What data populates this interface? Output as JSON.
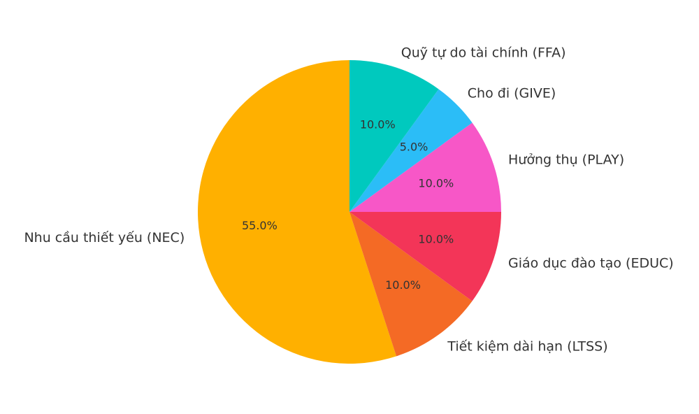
{
  "chart_data": {
    "type": "pie",
    "categories": [
      "Nhu cầu thiết yếu (NEC)",
      "Tiết kiệm dài hạn (LTSS)",
      "Giáo dục đào tạo (EDUC)",
      "Hưởng thụ (PLAY)",
      "Cho đi (GIVE)",
      "Quỹ tự do tài chính (FFA)"
    ],
    "values": [
      55,
      10,
      10,
      10,
      5,
      10
    ],
    "value_labels": [
      "55.0%",
      "10.0%",
      "10.0%",
      "10.0%",
      "5.0%",
      "10.0%"
    ],
    "colors": [
      "#ffb000",
      "#f46a25",
      "#f33558",
      "#f757c7",
      "#2bbdf7",
      "#00c9be"
    ]
  }
}
